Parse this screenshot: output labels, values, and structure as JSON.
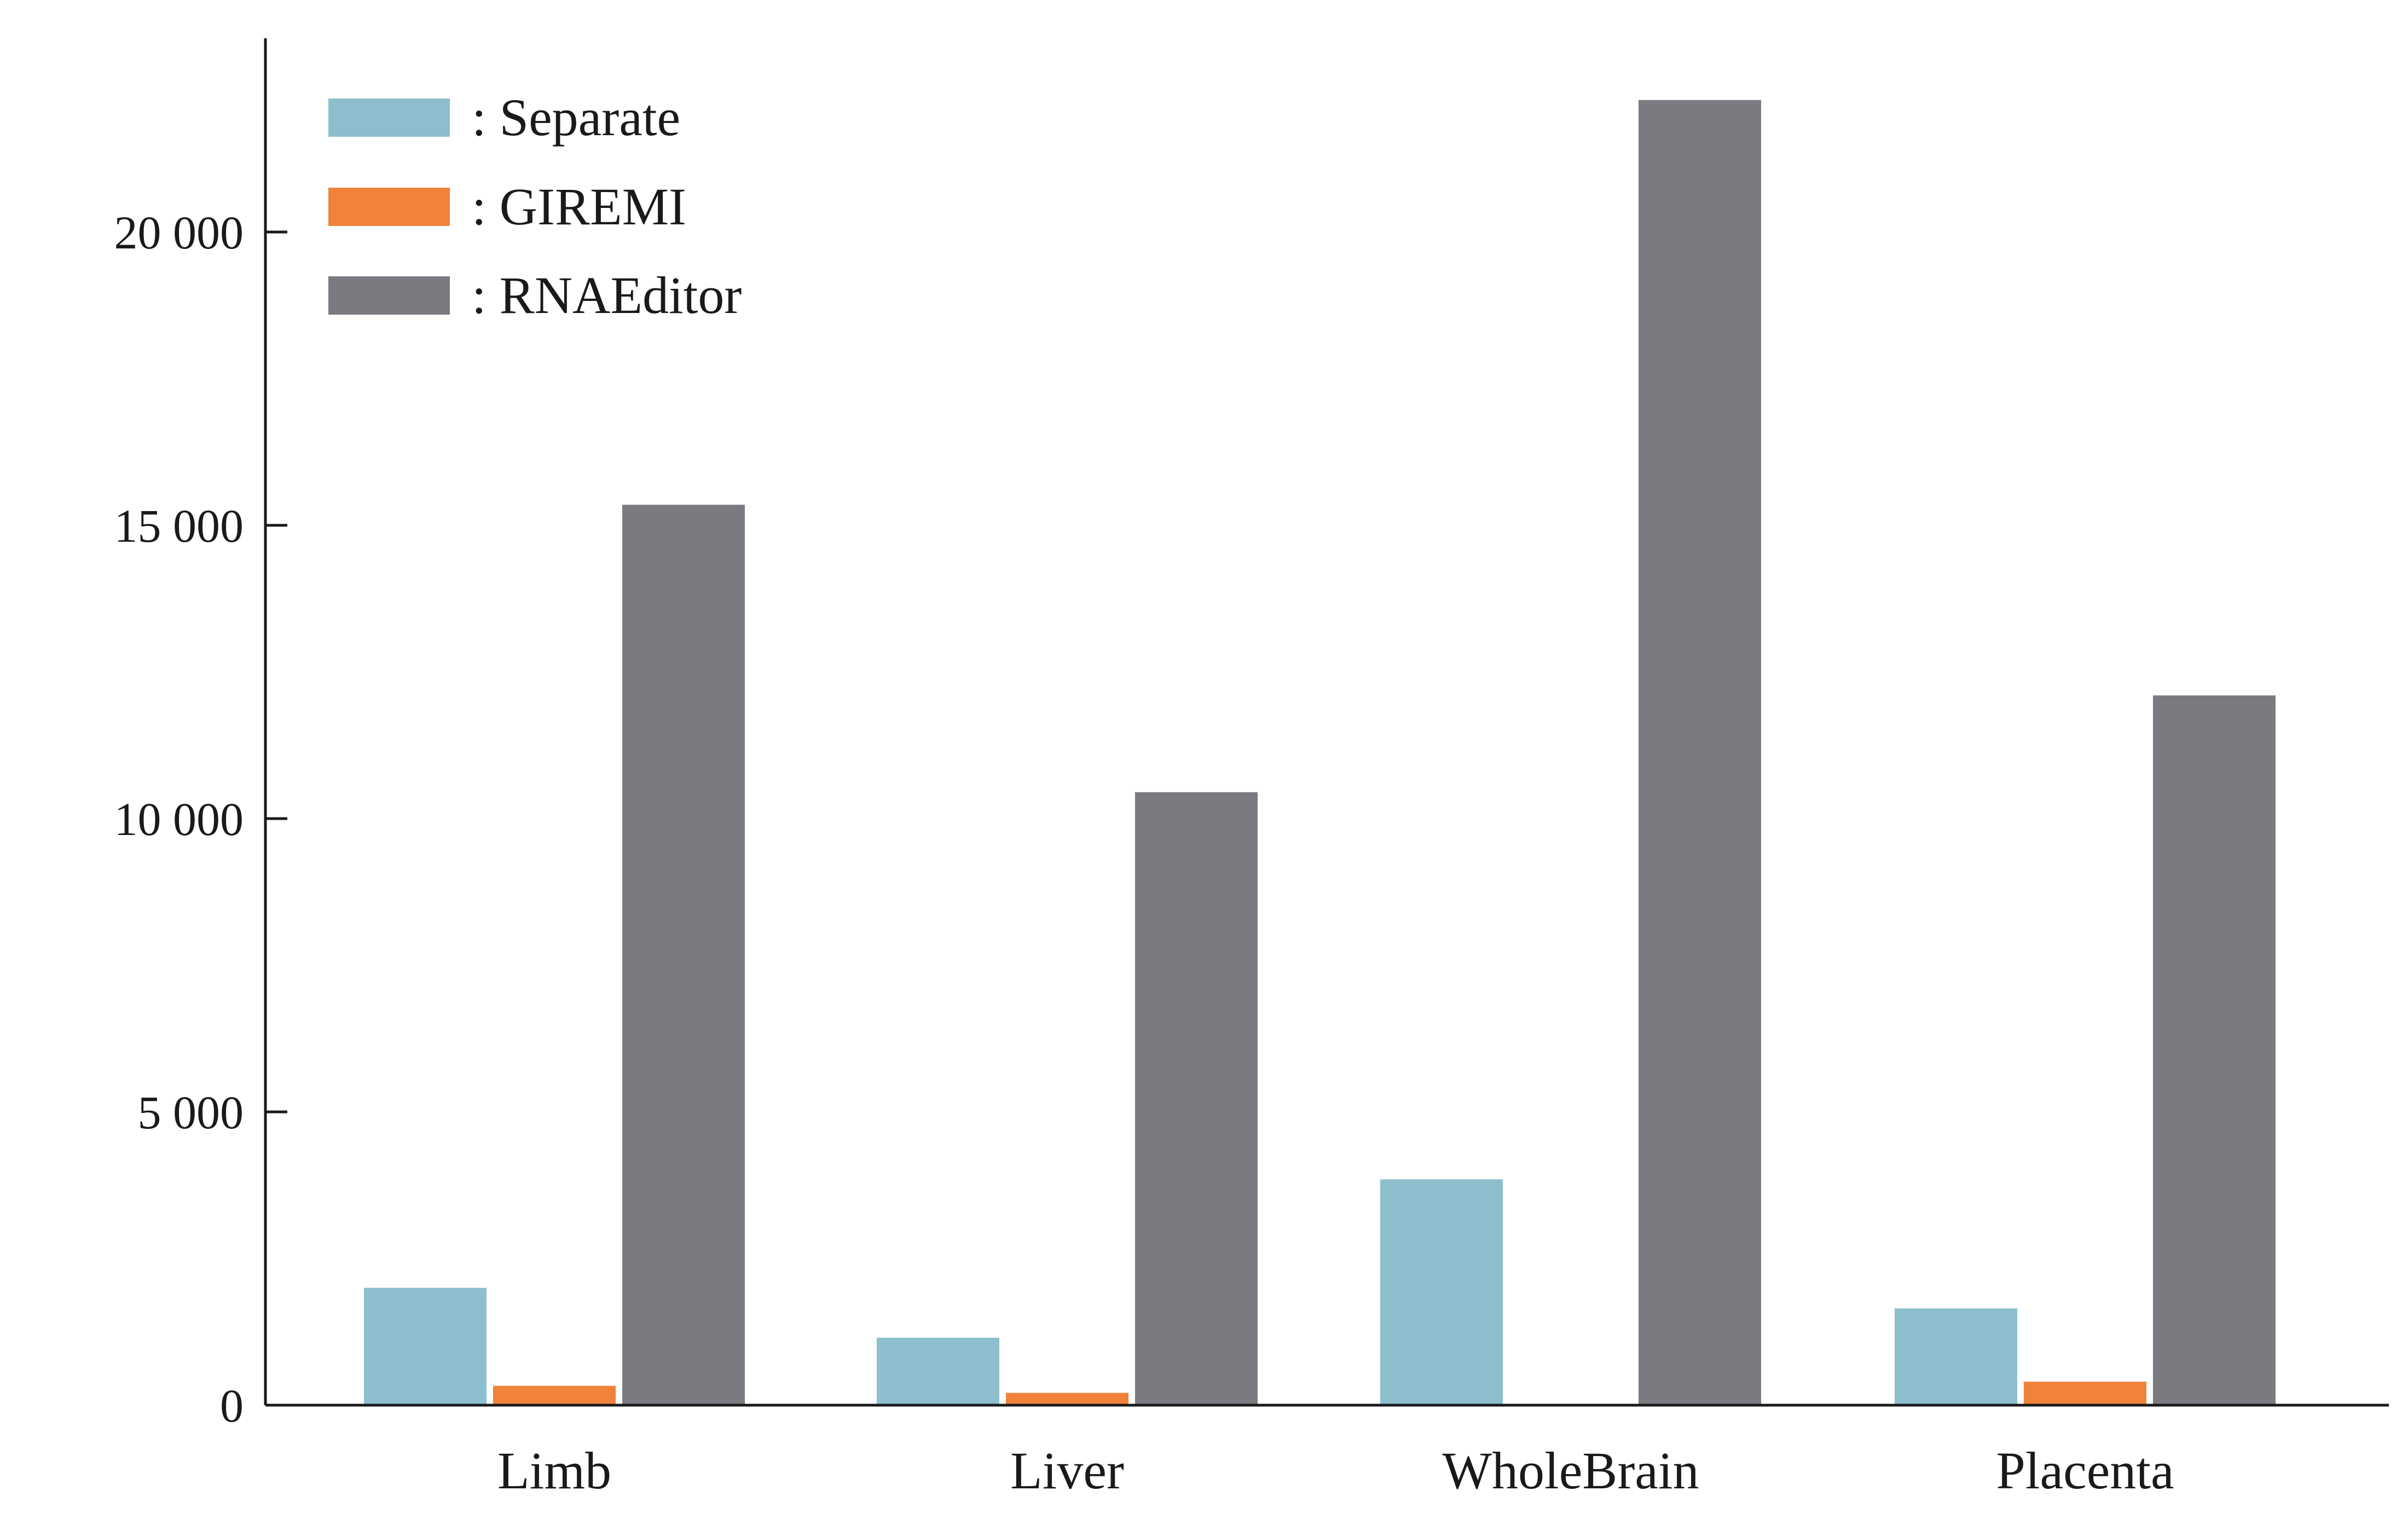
{
  "chart_data": {
    "type": "bar",
    "title": "",
    "xlabel": "",
    "ylabel": "",
    "categories": [
      "Limb",
      "Liver",
      "WholeBrain",
      "Placenta"
    ],
    "series": [
      {
        "name": ": Separate",
        "color": "#8dbece",
        "values": [
          2000,
          1150,
          3850,
          1650
        ]
      },
      {
        "name": ": GIREMI",
        "color": "#f0823a",
        "values": [
          330,
          210,
          0,
          400
        ]
      },
      {
        "name": ": RNAEditor",
        "color": "#7a7a80",
        "values": [
          15350,
          10450,
          22250,
          12100
        ]
      }
    ],
    "ylim": [
      0,
      23500
    ],
    "yticks": [
      0,
      5000,
      10000,
      15000,
      20000
    ],
    "ytick_labels": [
      "0",
      "5 000",
      "10 000",
      "15 000",
      "20 000"
    ],
    "grid": false,
    "legend_position": "top-left"
  }
}
